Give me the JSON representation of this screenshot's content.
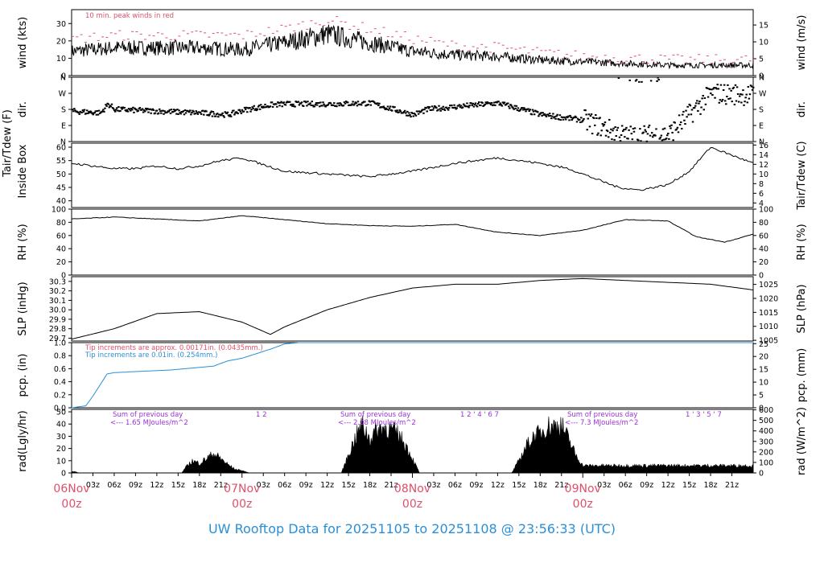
{
  "footer_title": "UW Rooftop Data for 20251105  to  20251108 @ 23:56:33  (UTC)",
  "colors": {
    "red": "#e0506a",
    "blue": "#2a8fd6",
    "purple": "#9b30d8",
    "axis": "#000000"
  },
  "time_axis": {
    "hour_ticks": [
      "03z",
      "06z",
      "09z",
      "12z",
      "15z",
      "18z",
      "21z"
    ],
    "day_labels": [
      {
        "top": "06Nov",
        "bottom": "00z"
      },
      {
        "top": "07Nov",
        "bottom": "00z"
      },
      {
        "top": "08Nov",
        "bottom": "00z"
      },
      {
        "top": "09Nov",
        "bottom": "00z"
      }
    ]
  },
  "chart_data": [
    {
      "type": "line",
      "id": "wind",
      "ylabel_left": "wind (kts)",
      "ylabel_right": "wind (m/s)",
      "left_ticks": [
        "0",
        "10",
        "20",
        "30"
      ],
      "right_ticks": [
        "0",
        "5",
        "10",
        "15"
      ],
      "ylim": [
        0,
        38
      ],
      "annotation": "10 min. peak winds in red",
      "series": [
        {
          "color": "#000000",
          "x_hours": [
            0,
            6,
            12,
            18,
            24,
            30,
            36,
            48,
            54,
            60,
            66,
            72,
            78,
            84,
            90,
            96
          ],
          "values": [
            14,
            16,
            16,
            16,
            15,
            19,
            24,
            14,
            12,
            11,
            9,
            8,
            7,
            6,
            6,
            6
          ]
        },
        {
          "color": "#e0506a",
          "x_hours": [
            0,
            6,
            12,
            18,
            24,
            30,
            36,
            48,
            54,
            60,
            66,
            72,
            78,
            84,
            90,
            96
          ],
          "values": [
            20,
            22,
            22,
            22,
            22,
            26,
            31,
            20,
            16,
            15,
            12,
            10,
            9,
            8,
            8,
            8
          ]
        }
      ]
    },
    {
      "type": "scatter",
      "id": "dir",
      "ylabel_left": "dir.",
      "ylabel_right": "dir.",
      "left_ticks": [
        "N",
        "E",
        "S",
        "W",
        "N"
      ],
      "right_ticks": [
        "N",
        "E",
        "S",
        "W",
        "N"
      ],
      "ylim": [
        0,
        360
      ],
      "series": [
        {
          "x_hours": [
            0,
            4,
            5,
            6,
            12,
            18,
            22,
            24,
            28,
            30,
            36,
            42,
            48,
            50,
            54,
            60,
            66,
            72,
            78,
            84,
            90,
            96
          ],
          "values": [
            170,
            160,
            210,
            180,
            170,
            160,
            150,
            175,
            205,
            210,
            210,
            215,
            150,
            180,
            195,
            215,
            150,
            120,
            30,
            40,
            270,
            260
          ]
        }
      ]
    },
    {
      "type": "line",
      "id": "temp",
      "ylabel_left": [
        "Tair/Tdew (F)",
        "Inside Box"
      ],
      "ylabel_right": "Tair/Tdew (C)",
      "left_ticks": [
        "40",
        "45",
        "50",
        "55",
        "60"
      ],
      "right_ticks": [
        "4",
        "6",
        "8",
        "10",
        "12",
        "14",
        "16"
      ],
      "ylim": [
        37.5,
        61.5
      ],
      "series": [
        {
          "x_hours": [
            0,
            3,
            6,
            9,
            12,
            15,
            18,
            21,
            24,
            30,
            36,
            42,
            45,
            48,
            54,
            60,
            66,
            70,
            72,
            77,
            80,
            84,
            87,
            90,
            96
          ],
          "values": [
            54,
            53,
            52,
            52,
            53,
            52,
            53,
            55,
            56,
            51,
            50,
            49,
            50,
            51,
            54,
            56,
            54,
            52,
            50,
            45,
            44,
            46,
            51,
            60,
            54
          ]
        }
      ]
    },
    {
      "type": "line",
      "id": "rh",
      "ylabel_left": "RH (%)",
      "ylabel_right": "RH (%)",
      "left_ticks": [
        "0",
        "20",
        "40",
        "60",
        "80",
        "100"
      ],
      "right_ticks": [
        "0",
        "20",
        "40",
        "60",
        "80",
        "100"
      ],
      "ylim": [
        0,
        100
      ],
      "series": [
        {
          "x_hours": [
            0,
            6,
            12,
            18,
            24,
            30,
            36,
            42,
            48,
            54,
            60,
            66,
            72,
            78,
            84,
            88,
            92,
            96
          ],
          "values": [
            85,
            88,
            85,
            82,
            90,
            84,
            78,
            75,
            74,
            77,
            65,
            60,
            68,
            84,
            82,
            58,
            50,
            62
          ]
        }
      ]
    },
    {
      "type": "line",
      "id": "slp",
      "ylabel_left": "SLP (inHg)",
      "ylabel_right": "SLP (hPa)",
      "left_ticks": [
        "29.7",
        "29.8",
        "29.9",
        "30.0",
        "30.1",
        "30.2",
        "30.3"
      ],
      "right_ticks": [
        "1005",
        "1010",
        "1015",
        "1020",
        "1025"
      ],
      "ylim": [
        29.67,
        30.35
      ],
      "series": [
        {
          "x_hours": [
            0,
            6,
            12,
            18,
            24,
            28,
            30,
            36,
            42,
            48,
            54,
            60,
            66,
            72,
            78,
            84,
            90,
            96
          ],
          "values": [
            29.69,
            29.8,
            29.96,
            29.98,
            29.87,
            29.74,
            29.82,
            30.0,
            30.13,
            30.23,
            30.27,
            30.27,
            30.31,
            30.33,
            30.31,
            30.29,
            30.27,
            30.21
          ]
        }
      ]
    },
    {
      "type": "line",
      "id": "pcp",
      "ylabel_left": "pcp. (in)",
      "ylabel_right": "pcp. (mm)",
      "left_ticks": [
        "0.0",
        "0.2",
        "0.4",
        "0.6",
        "0.8",
        "1.0"
      ],
      "right_ticks": [
        "0",
        "5",
        "10",
        "15",
        "20",
        "25"
      ],
      "ylim": [
        0,
        1.0
      ],
      "annotations": [
        {
          "text": "Tip increments are approx. 0.00171in. (0.0435mm.)",
          "color": "#e0506a"
        },
        {
          "text": "Tip increments are 0.01in. (0.254mm.)",
          "color": "#2a8fd6"
        }
      ],
      "series": [
        {
          "color": "#2a8fd6",
          "x_hours": [
            0,
            2,
            3,
            4,
            5,
            6,
            10,
            14,
            16,
            20,
            22,
            24,
            28,
            30,
            32,
            48,
            96
          ],
          "values": [
            0.0,
            0.03,
            0.18,
            0.35,
            0.52,
            0.54,
            0.56,
            0.58,
            0.6,
            0.64,
            0.72,
            0.76,
            0.9,
            0.98,
            1.0,
            1.0,
            1.0
          ]
        }
      ]
    },
    {
      "type": "area",
      "id": "rad",
      "ylabel_left": "rad(Lgly/hr)",
      "ylabel_right": "rad (W/m^2)",
      "left_ticks": [
        "0",
        "10",
        "20",
        "30",
        "40",
        "50"
      ],
      "right_ticks": [
        "0",
        "100",
        "200",
        "300",
        "400",
        "500",
        "600"
      ],
      "ylim": [
        0,
        52
      ],
      "notes": [
        {
          "line1": "Sum of previous day",
          "line2": "<--- 1.65 MJoules/m^2",
          "marks": "1   2"
        },
        {
          "line1": "Sum of previous day",
          "line2": "<--- 2.08 MJoules/m^2",
          "marks": "1  2 ' 4 ' 6  7"
        },
        {
          "line1": "Sum of previous day",
          "line2": "<--- 7.3 MJoules/m^2",
          "marks": "1 ' 3 ' 5 '  7"
        }
      ],
      "series": [
        {
          "x_hours": [
            0,
            0.5,
            1,
            15.5,
            16,
            17,
            18,
            19,
            20,
            21,
            22,
            23,
            24,
            24.5,
            25,
            38,
            39,
            40,
            41,
            42,
            43,
            44,
            45,
            46,
            47,
            48,
            49,
            62,
            63,
            64,
            65,
            66,
            67,
            68,
            69,
            70,
            71,
            72
          ],
          "values": [
            1,
            1,
            0,
            0,
            4,
            10,
            8,
            12,
            16,
            12,
            7,
            3,
            2,
            1,
            0,
            0,
            15,
            30,
            40,
            28,
            36,
            38,
            36,
            32,
            24,
            12,
            0,
            0,
            10,
            22,
            30,
            33,
            39,
            39,
            40,
            28,
            15,
            6
          ]
        }
      ]
    }
  ]
}
